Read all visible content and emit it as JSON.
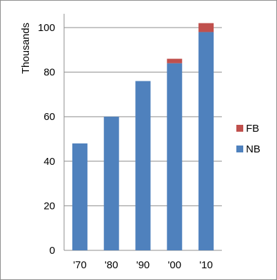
{
  "chart_data": {
    "type": "bar",
    "stacked": true,
    "categories": [
      "'70",
      "'80",
      "'90",
      "'00",
      "'10"
    ],
    "series": [
      {
        "name": "NB",
        "color": "#4f81bd",
        "values": [
          48,
          60,
          76,
          84,
          98
        ]
      },
      {
        "name": "FB",
        "color": "#c0504d",
        "values": [
          0,
          0,
          0,
          2,
          4
        ]
      }
    ],
    "ylabel": "Thousands",
    "ylim": [
      0,
      100
    ],
    "yticks": [
      0,
      20,
      40,
      60,
      80,
      100
    ],
    "grid": true,
    "legend_position": "right"
  }
}
